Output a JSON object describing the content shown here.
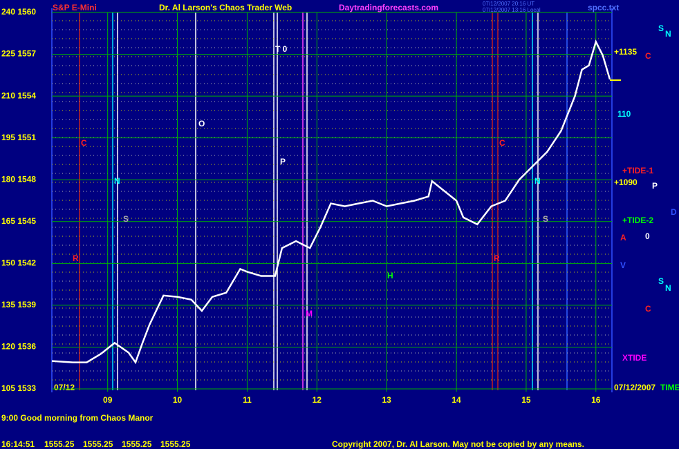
{
  "chart_data": {
    "type": "line",
    "title": "Dr. Al Larson's Chaos Trader Web",
    "subtitle": "S&P E-Mini",
    "website": "Daytradingforecasts.com",
    "file": "spcc.txt",
    "timestamps": [
      "07/12/2007 20:16 UT",
      "07/12/2007 13:16 Local"
    ],
    "start_date": "07/12",
    "end_date": "07/12/2007",
    "x": [
      8.2,
      8.5,
      8.7,
      8.9,
      9.1,
      9.3,
      9.4,
      9.5,
      9.6,
      9.8,
      10.0,
      10.2,
      10.35,
      10.5,
      10.7,
      10.9,
      11.0,
      11.2,
      11.4,
      11.5,
      11.7,
      11.9,
      12.05,
      12.2,
      12.4,
      12.6,
      12.8,
      13.0,
      13.2,
      13.4,
      13.6,
      13.65,
      13.8,
      14.0,
      14.1,
      14.3,
      14.5,
      14.7,
      14.9,
      15.1,
      15.3,
      15.5,
      15.7,
      15.8,
      15.9,
      16.0,
      16.1,
      16.2
    ],
    "series": [
      {
        "color": "#ffffff",
        "values": [
          1535.0,
          1534.9,
          1534.9,
          1535.5,
          1536.3,
          1535.6,
          1534.9,
          1536.3,
          1537.6,
          1539.7,
          1539.6,
          1539.4,
          1538.6,
          1539.6,
          1539.9,
          1541.6,
          1541.4,
          1541.1,
          1541.1,
          1543.1,
          1543.6,
          1543.1,
          1544.6,
          1546.3,
          1546.1,
          1546.3,
          1546.5,
          1546.1,
          1546.3,
          1546.5,
          1546.8,
          1547.9,
          1547.3,
          1546.5,
          1545.3,
          1544.8,
          1546.1,
          1546.5,
          1548.0,
          1549.0,
          1550.0,
          1551.5,
          1554.0,
          1555.9,
          1556.2,
          1557.9,
          1556.9,
          1555.2
        ]
      }
    ],
    "xlim": [
      8.2,
      16.23
    ],
    "xticks": [
      {
        "value": 9,
        "label": "09"
      },
      10,
      11,
      12,
      13,
      14,
      15,
      16
    ],
    "ylim": [
      1533,
      1560
    ],
    "yticks": [
      {
        "value": 1533,
        "label": "105 1533"
      },
      {
        "value": 1536,
        "label": "120 1536"
      },
      {
        "value": 1539,
        "label": "135 1539"
      },
      {
        "value": 1542,
        "label": "150 1542"
      },
      {
        "value": 1545,
        "label": "165 1545"
      },
      {
        "value": 1548,
        "label": "180 1548"
      },
      {
        "value": 1551,
        "label": "195 1551"
      },
      {
        "value": 1554,
        "label": "210 1554"
      },
      {
        "value": 1557,
        "label": "225 1557"
      },
      {
        "value": 1560,
        "label": "240 1560"
      }
    ],
    "grid": true,
    "annotations": [
      {
        "text": "T 0",
        "color": "#ffffff"
      },
      {
        "text": "O",
        "color": "#ffffff"
      },
      {
        "text": "P",
        "color": "#ffffff"
      },
      {
        "text": "C",
        "color": "#ff2020"
      },
      {
        "text": "N",
        "color": "#00ffff"
      },
      {
        "text": "S",
        "color": "#aaaaaa"
      },
      {
        "text": "R",
        "color": "#ff2020"
      },
      {
        "text": "H",
        "color": "#00ff00"
      },
      {
        "text": "M",
        "color": "#ff00ff"
      },
      {
        "text": "C",
        "color": "#ff2020"
      },
      {
        "text": "N",
        "color": "#00ffff"
      },
      {
        "text": "S",
        "color": "#aaaaaa"
      },
      {
        "text": "R",
        "color": "#ff2020"
      },
      {
        "text": "V",
        "color": "#3050ff"
      },
      {
        "text": "A",
        "color": "#ff2020"
      },
      {
        "text": "+1135",
        "color": "#ffff00"
      },
      {
        "text": "110",
        "color": "#00ffff"
      },
      {
        "text": "+TIDE-1",
        "color": "#ff2020"
      },
      {
        "text": "+1090",
        "color": "#ffff00"
      },
      {
        "text": "+TIDE-2",
        "color": "#00ff00"
      },
      {
        "text": "XTIDE",
        "color": "#ff00ff"
      },
      {
        "text": "TIME",
        "color": "#00ff00"
      },
      {
        "text": "0",
        "color": "#ffffff"
      },
      {
        "text": "P",
        "color": "#ffffff"
      },
      {
        "text": "D",
        "color": "#3050ff"
      },
      {
        "text": "S",
        "color": "#00ffff"
      },
      {
        "text": "N",
        "color": "#00ffff"
      },
      {
        "text": "C",
        "color": "#ff2020"
      },
      {
        "text": "C",
        "color": "#ff2020"
      },
      {
        "text": "S",
        "color": "#00ffff"
      },
      {
        "text": "N",
        "color": "#00ffff"
      }
    ]
  },
  "footer": {
    "message": "9:00 Good morning from Chaos Manor",
    "quote_time": "16:14:51",
    "quote_prices": [
      1555.25,
      1555.25,
      1555.25,
      1555.25
    ],
    "copyright": "Copyright 2007, Dr. Al Larson. May not be copied by any means."
  }
}
